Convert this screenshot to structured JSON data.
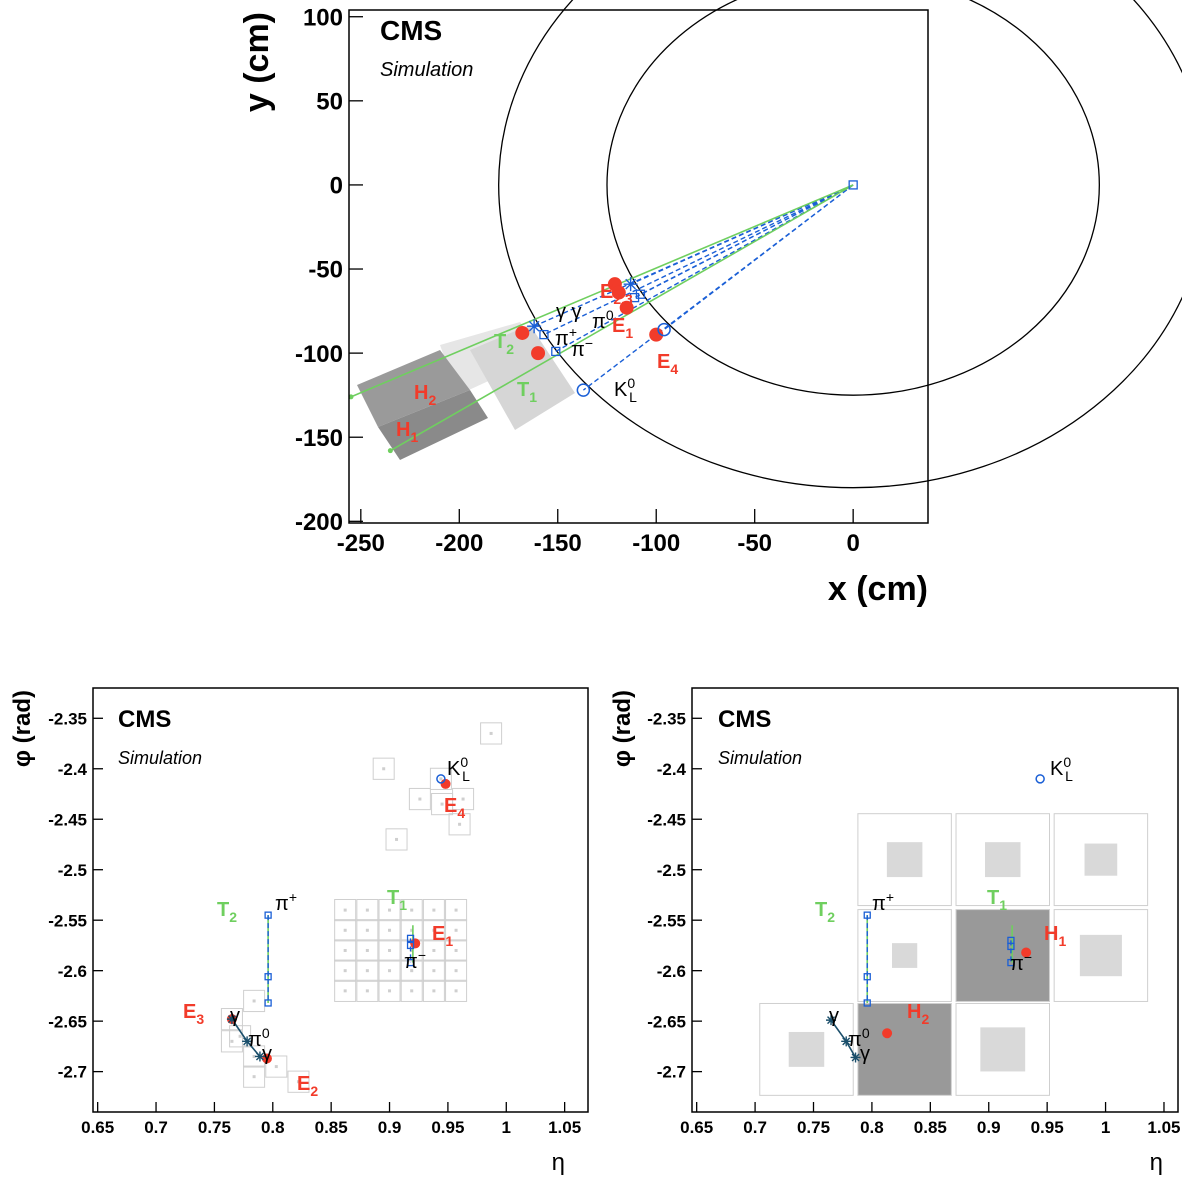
{
  "chart_data": [
    {
      "type": "scatter",
      "title": "CMS",
      "subtitle": "Simulation",
      "xlabel": "x (cm)",
      "ylabel": "y (cm)",
      "xlim": [
        -256,
        38
      ],
      "ylim": [
        -201,
        104
      ],
      "xticks": [
        -250,
        -200,
        -150,
        -100,
        -50,
        0
      ],
      "yticks": [
        -200,
        -150,
        -100,
        -50,
        0,
        50,
        100
      ],
      "radii": [
        125,
        180
      ],
      "series": [
        {
          "style": "dash",
          "color": "#1a5fd6",
          "x": [
            0,
            -162,
            null,
            0,
            -157,
            null,
            0,
            -151,
            null,
            0,
            -137,
            null,
            0,
            -113,
            null,
            0,
            -111,
            null,
            0,
            -108,
            null,
            0,
            -96
          ],
          "y": [
            0,
            -84,
            null,
            0,
            -89,
            null,
            0,
            -99,
            null,
            0,
            -122,
            null,
            0,
            -59,
            null,
            0,
            -67,
            null,
            0,
            -65,
            null,
            0,
            -86
          ]
        },
        {
          "style": "line",
          "color": "#6fcf5f",
          "x": [
            0,
            -235,
            null,
            0,
            -255
          ],
          "y": [
            0,
            -158,
            null,
            0,
            -126
          ]
        },
        {
          "style": "hit",
          "color": "#6fcf5f",
          "x": [
            -235,
            -255
          ],
          "y": [
            -158,
            -126
          ]
        },
        {
          "style": "dot",
          "color": "#f23b2a",
          "x": [
            -168,
            -160,
            -121,
            -119,
            -115,
            -100
          ],
          "y": [
            -88,
            -100,
            -59,
            -64,
            -73,
            -89
          ]
        },
        {
          "style": "circle",
          "color": "#1a5fd6",
          "x": [
            -96,
            -137
          ],
          "y": [
            -86,
            -122
          ]
        },
        {
          "style": "square",
          "color": "#1a5fd6",
          "x": [
            -157,
            -151,
            -111,
            -108,
            0
          ],
          "y": [
            -89,
            -99,
            -67,
            -65,
            0
          ]
        },
        {
          "style": "star",
          "color": "#1a5fd6",
          "x": [
            -162,
            -113
          ],
          "y": [
            -84,
            -59
          ]
        }
      ],
      "annotations": [
        {
          "text": "E",
          "sub": "2,3",
          "color": "#f23b2a"
        },
        {
          "text": "γ γ",
          "color": "#000000"
        },
        {
          "text": "π",
          "sup": "0",
          "color": "#000000"
        },
        {
          "text": "E",
          "sub": "1",
          "color": "#f23b2a"
        },
        {
          "text": "π",
          "sup": "+",
          "color": "#000000"
        },
        {
          "text": "π",
          "sup": "−",
          "color": "#000000"
        },
        {
          "text": "T",
          "sub": "2",
          "color": "#6fcf5f"
        },
        {
          "text": "T",
          "sub": "1",
          "color": "#6fcf5f"
        },
        {
          "text": "H",
          "sub": "2",
          "color": "#f23b2a"
        },
        {
          "text": "H",
          "sub": "1",
          "color": "#f23b2a"
        },
        {
          "text": "E",
          "sub": "4",
          "color": "#f23b2a"
        },
        {
          "text": "K",
          "sup": "0",
          "sub": "L",
          "color": "#000000"
        }
      ]
    },
    {
      "type": "scatter",
      "title": "CMS",
      "subtitle": "Simulation",
      "xlabel": "η",
      "ylabel": "φ (rad)",
      "xlim": [
        0.646,
        1.07
      ],
      "ylim": [
        -2.74,
        -2.32
      ],
      "xticks": [
        0.65,
        0.7,
        0.75,
        0.8,
        0.85,
        0.9,
        0.95,
        1,
        1.05
      ],
      "yticks": [
        -2.7,
        -2.65,
        -2.6,
        -2.55,
        -2.5,
        -2.45,
        -2.4,
        -2.35
      ],
      "series": [
        {
          "style": "cell",
          "color": "#cfcfcf",
          "x": [
            0.862,
            0.881,
            0.9,
            0.919,
            0.938,
            0.957,
            0.862,
            0.881,
            0.9,
            0.919,
            0.938,
            0.957,
            0.862,
            0.881,
            0.9,
            0.919,
            0.938,
            0.957,
            0.862,
            0.881,
            0.9,
            0.919,
            0.938,
            0.957,
            0.862,
            0.881,
            0.9,
            0.919,
            0.938,
            0.957,
            0.944,
            0.963,
            0.926,
            0.945,
            0.895,
            0.987,
            0.906,
            0.96,
            0.765,
            0.784,
            0.772,
            0.784,
            0.803,
            0.822,
            0.765,
            0.784
          ],
          "y": [
            -2.54,
            -2.54,
            -2.54,
            -2.54,
            -2.54,
            -2.54,
            -2.56,
            -2.56,
            -2.56,
            -2.56,
            -2.56,
            -2.56,
            -2.58,
            -2.58,
            -2.58,
            -2.58,
            -2.58,
            -2.58,
            -2.6,
            -2.6,
            -2.6,
            -2.6,
            -2.6,
            -2.6,
            -2.62,
            -2.62,
            -2.62,
            -2.62,
            -2.62,
            -2.62,
            -2.41,
            -2.43,
            -2.43,
            -2.435,
            -2.4,
            -2.365,
            -2.47,
            -2.455,
            -2.648,
            -2.63,
            -2.665,
            -2.685,
            -2.695,
            -2.71,
            -2.67,
            -2.705
          ]
        },
        {
          "style": "line",
          "color": "#6fcf5f",
          "x": [
            0.796,
            0.796,
            null,
            0.92,
            0.92
          ],
          "y": [
            -2.545,
            -2.632,
            null,
            -2.555,
            -2.592
          ]
        },
        {
          "style": "dash",
          "color": "#1a5fd6",
          "x": [
            0.796,
            0.796,
            0.796,
            null,
            0.918,
            0.918
          ],
          "y": [
            -2.545,
            -2.606,
            -2.632,
            null,
            -2.568,
            -2.592
          ]
        },
        {
          "style": "line",
          "color": "#1b4f6b",
          "x": [
            0.765,
            0.778,
            0.789
          ],
          "y": [
            -2.648,
            -2.67,
            -2.685
          ]
        },
        {
          "style": "dot",
          "color": "#f23b2a",
          "x": [
            0.948,
            0.922,
            0.765,
            0.795
          ],
          "y": [
            -2.415,
            -2.573,
            -2.648,
            -2.687
          ]
        },
        {
          "style": "circle",
          "color": "#1a5fd6",
          "x": [
            0.944
          ],
          "y": [
            -2.41
          ]
        },
        {
          "style": "square",
          "color": "#1a5fd6",
          "x": [
            0.796,
            0.796,
            0.796,
            0.918,
            0.918,
            0.918
          ],
          "y": [
            -2.545,
            -2.606,
            -2.632,
            -2.568,
            -2.575,
            -2.592
          ]
        },
        {
          "style": "star",
          "color": "#1b4f6b",
          "x": [
            0.765,
            0.789,
            0.778
          ],
          "y": [
            -2.648,
            -2.685,
            -2.67
          ]
        }
      ],
      "annotations": [
        {
          "text": "K",
          "sup": "0",
          "sub": "L",
          "color": "#000000"
        },
        {
          "text": "E",
          "sub": "4",
          "color": "#f23b2a"
        },
        {
          "text": "T",
          "sub": "2",
          "color": "#6fcf5f"
        },
        {
          "text": "π",
          "sup": "+",
          "color": "#000000"
        },
        {
          "text": "T",
          "sub": "1",
          "color": "#6fcf5f"
        },
        {
          "text": "E",
          "sub": "1",
          "color": "#f23b2a"
        },
        {
          "text": "π",
          "sup": "−",
          "color": "#000000"
        },
        {
          "text": "E",
          "sub": "3",
          "color": "#f23b2a"
        },
        {
          "text": "γ",
          "color": "#000000"
        },
        {
          "text": "π",
          "sup": "0",
          "color": "#000000"
        },
        {
          "text": "γ",
          "color": "#000000"
        },
        {
          "text": "E",
          "sub": "2",
          "color": "#f23b2a"
        }
      ]
    },
    {
      "type": "scatter",
      "title": "CMS",
      "subtitle": "Simulation",
      "xlabel": "η",
      "ylabel": "φ (rad)",
      "xlim": [
        0.646,
        1.062
      ],
      "ylim": [
        -2.74,
        -2.32
      ],
      "xticks": [
        0.65,
        0.7,
        0.75,
        0.8,
        0.85,
        0.9,
        0.95,
        1,
        1.05
      ],
      "yticks": [
        -2.7,
        -2.65,
        -2.6,
        -2.55,
        -2.5,
        -2.45,
        -2.4,
        -2.35
      ],
      "series": [
        {
          "style": "hcal",
          "color": "#d9d9d9",
          "x": [
            0.828,
            0.912,
            0.996,
            0.828,
            0.996,
            0.744,
            0.912
          ],
          "y": [
            -2.49,
            -2.49,
            -2.49,
            -2.585,
            -2.585,
            -2.678,
            -2.678
          ],
          "sizes": [
            0.38,
            0.38,
            0.35,
            0.27,
            0.45,
            0.38,
            0.48
          ]
        },
        {
          "style": "dark",
          "color": "#999999",
          "x": [
            0.912,
            0.828
          ],
          "y": [
            -2.585,
            -2.678
          ]
        },
        {
          "style": "line",
          "color": "#6fcf5f",
          "x": [
            0.796,
            0.796,
            null,
            0.92,
            0.92
          ],
          "y": [
            -2.545,
            -2.632,
            null,
            -2.555,
            -2.592
          ]
        },
        {
          "style": "dash",
          "color": "#1a5fd6",
          "x": [
            0.796,
            0.796,
            0.796,
            null,
            0.919,
            0.919
          ],
          "y": [
            -2.545,
            -2.606,
            -2.632,
            null,
            -2.57,
            -2.592
          ]
        },
        {
          "style": "line",
          "color": "#1b4f6b",
          "x": [
            0.765,
            0.778,
            0.786
          ],
          "y": [
            -2.649,
            -2.67,
            -2.686
          ]
        },
        {
          "style": "dot",
          "color": "#f23b2a",
          "x": [
            0.932,
            0.813
          ],
          "y": [
            -2.582,
            -2.662
          ]
        },
        {
          "style": "circle",
          "color": "#1a5fd6",
          "x": [
            0.944
          ],
          "y": [
            -2.41
          ]
        },
        {
          "style": "square",
          "color": "#1a5fd6",
          "x": [
            0.796,
            0.796,
            0.796,
            0.919,
            0.919,
            0.919
          ],
          "y": [
            -2.545,
            -2.606,
            -2.632,
            -2.57,
            -2.576,
            -2.592
          ]
        },
        {
          "style": "star",
          "color": "#1b4f6b",
          "x": [
            0.765,
            0.786,
            0.778
          ],
          "y": [
            -2.649,
            -2.686,
            -2.67
          ]
        }
      ],
      "annotations": [
        {
          "text": "K",
          "sup": "0",
          "sub": "L",
          "color": "#000000"
        },
        {
          "text": "T",
          "sub": "2",
          "color": "#6fcf5f"
        },
        {
          "text": "π",
          "sup": "+",
          "color": "#000000"
        },
        {
          "text": "T",
          "sub": "1",
          "color": "#6fcf5f"
        },
        {
          "text": "H",
          "sub": "1",
          "color": "#f23b2a"
        },
        {
          "text": "π",
          "sup": "−",
          "color": "#000000"
        },
        {
          "text": "γ",
          "color": "#000000"
        },
        {
          "text": "π",
          "sup": "0",
          "color": "#000000"
        },
        {
          "text": "γ",
          "color": "#000000"
        },
        {
          "text": "H",
          "sub": "2",
          "color": "#f23b2a"
        }
      ]
    }
  ]
}
